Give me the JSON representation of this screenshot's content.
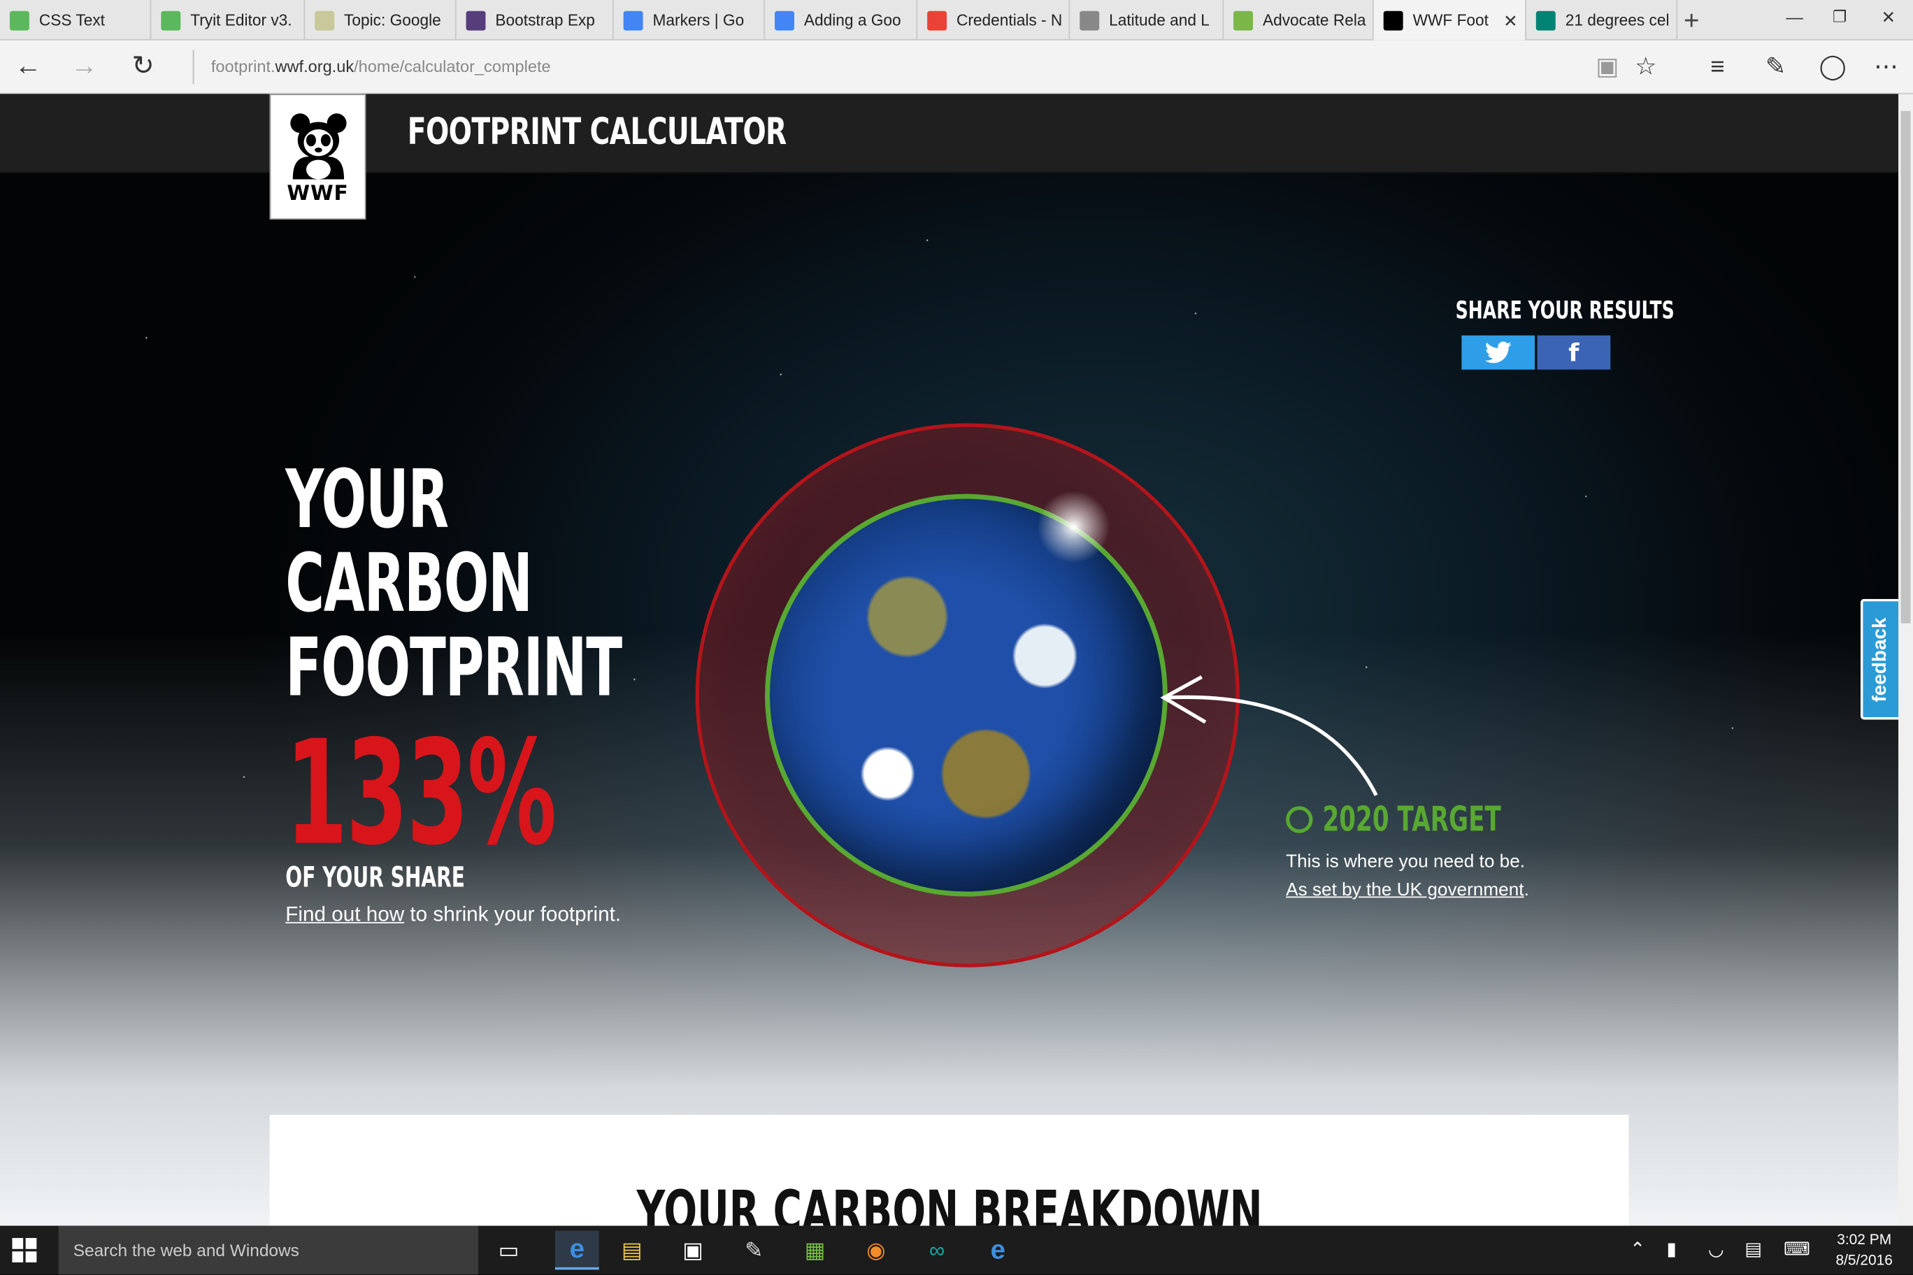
{
  "browser": {
    "tabs": [
      {
        "label": "CSS Text",
        "icon": "w3schools-icon",
        "color": "#5cb85c"
      },
      {
        "label": "Tryit Editor v3.",
        "icon": "w3schools-icon",
        "color": "#5cb85c"
      },
      {
        "label": "Topic: Google",
        "icon": "forum-icon",
        "color": "#c8c89a"
      },
      {
        "label": "Bootstrap Exp",
        "icon": "bootstrap-icon",
        "color": "#563d7c"
      },
      {
        "label": "Markers | Go",
        "icon": "google-dev-icon",
        "color": "#4285f4"
      },
      {
        "label": "Adding a Goo",
        "icon": "google-dev-icon",
        "color": "#4285f4"
      },
      {
        "label": "Credentials - N",
        "icon": "google-icon",
        "color": "#ea4335"
      },
      {
        "label": "Latitude and L",
        "icon": "page-icon",
        "color": "#888888"
      },
      {
        "label": "Advocate Rela",
        "icon": "maps-icon",
        "color": "#7ab648"
      },
      {
        "label": "WWF Foot",
        "icon": "panda-icon",
        "color": "#000000",
        "active": true
      },
      {
        "label": "21 degrees cel",
        "icon": "bing-icon",
        "color": "#008373"
      }
    ],
    "url_prefix": "footprint.",
    "url_domain": "wwf.org.uk",
    "url_path": "/home/calculator_complete"
  },
  "site": {
    "logo_text": "WWF",
    "title": "FOOTPRINT CALCULATOR",
    "share_label": "SHARE YOUR RESULTS",
    "twitter_icon": "twitter-icon",
    "facebook_icon": "facebook-icon",
    "headline": [
      "YOUR",
      "CARBON",
      "FOOTPRINT"
    ],
    "percent": "133%",
    "percent_color": "#d8151a",
    "of_share": "OF YOUR SHARE",
    "find_out_link": "Find out how",
    "find_out_rest": " to shrink your footprint.",
    "target_title": "2020 TARGET",
    "target_color": "#58a832",
    "target_desc": "This is where you need to be.",
    "target_link": "As set by the UK government",
    "target_period": ".",
    "feedback": "feedback",
    "breakdown_title": "YOUR CARBON BREAKDOWN"
  },
  "taskbar": {
    "search_placeholder": "Search the web and Windows",
    "time": "3:02 PM",
    "date": "8/5/2016"
  }
}
